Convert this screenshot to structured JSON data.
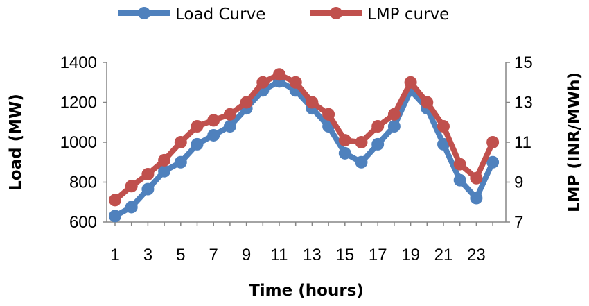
{
  "chart_data": {
    "type": "line",
    "x": [
      1,
      2,
      3,
      4,
      5,
      6,
      7,
      8,
      9,
      10,
      11,
      12,
      13,
      14,
      15,
      16,
      17,
      18,
      19,
      20,
      21,
      22,
      23,
      24
    ],
    "xlabel": "Time (hours)",
    "x_tick_labels": [
      "1",
      "3",
      "5",
      "7",
      "9",
      "11",
      "13",
      "15",
      "17",
      "19",
      "21",
      "23"
    ],
    "ylabel_left": "Load (MW)",
    "ylabel_right": "LMP (INR/MWh)",
    "ylim_left": [
      600,
      1400
    ],
    "ylim_right": [
      7,
      15
    ],
    "y_left_ticks": [
      "600",
      "800",
      "1000",
      "1200",
      "1400"
    ],
    "y_right_ticks": [
      "7",
      "9",
      "11",
      "13",
      "15"
    ],
    "legend_position": "top",
    "series": [
      {
        "name": "Load Curve",
        "axis": "left",
        "color": "#4F81BD",
        "values": [
          630,
          675,
          765,
          855,
          900,
          990,
          1035,
          1080,
          1170,
          1260,
          1305,
          1260,
          1170,
          1080,
          945,
          900,
          990,
          1080,
          1260,
          1170,
          990,
          810,
          720,
          900
        ]
      },
      {
        "name": "LMP curve",
        "axis": "right",
        "color": "#C0504D",
        "values": [
          8.1,
          8.8,
          9.4,
          10.1,
          11.0,
          11.8,
          12.1,
          12.4,
          13.0,
          14.0,
          14.4,
          14.0,
          13.0,
          12.4,
          11.1,
          11.0,
          11.8,
          12.4,
          14.0,
          13.0,
          11.8,
          9.9,
          9.2,
          11.0
        ]
      }
    ]
  }
}
